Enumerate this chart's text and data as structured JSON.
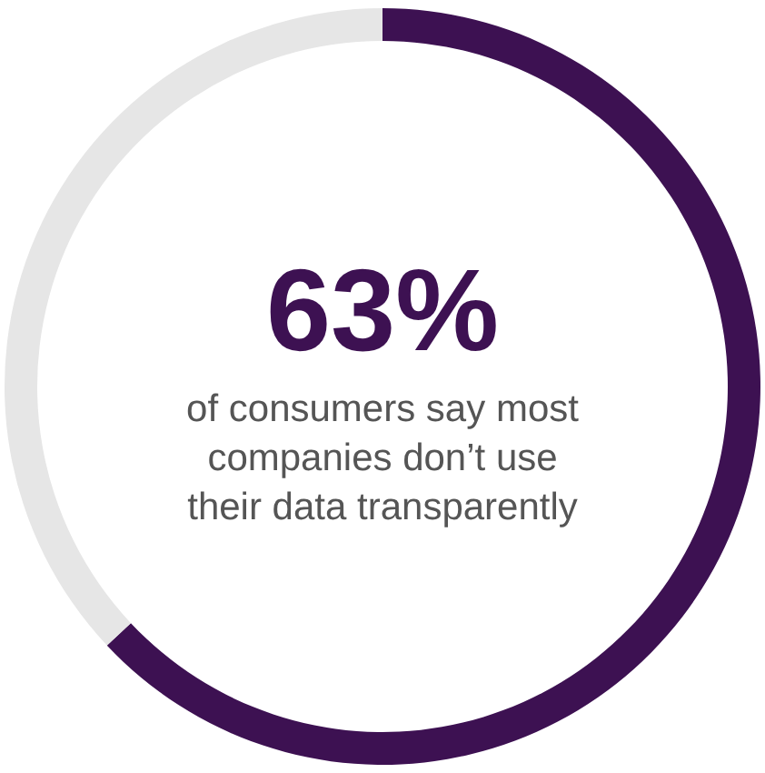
{
  "chart_data": {
    "type": "donut",
    "categories": [
      null,
      null
    ],
    "values": [
      63,
      37
    ],
    "colors": [
      "#3d1152",
      "#e6e6e6"
    ],
    "value_labels": [
      "63%",
      null
    ],
    "annotations": [
      "of consumers say most companies don’t use their data transparently"
    ]
  }
}
